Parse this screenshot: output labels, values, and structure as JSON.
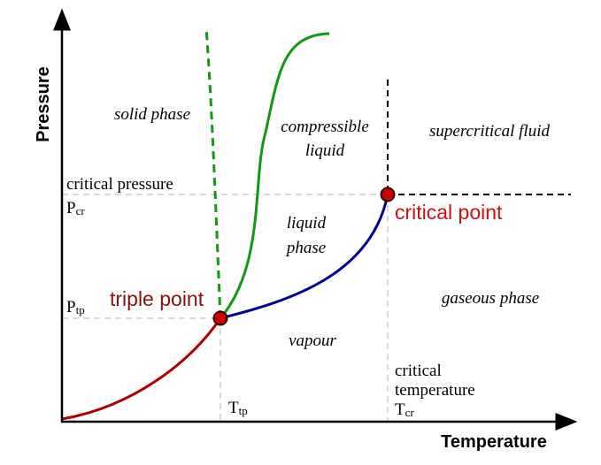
{
  "axes": {
    "x_label": "Temperature",
    "y_label": "Pressure"
  },
  "regions": {
    "solid": "solid phase",
    "compressible_line1": "compressible",
    "compressible_line2": "liquid",
    "supercritical": "supercritical fluid",
    "liquid_line1": "liquid",
    "liquid_line2": "phase",
    "gaseous": "gaseous phase",
    "vapour": "vapour"
  },
  "labels": {
    "critical_pressure": "critical pressure",
    "p_cr_main": "P",
    "p_cr_sub": "cr",
    "p_tp_main": "P",
    "p_tp_sub": "tp",
    "t_tp_main": "T",
    "t_tp_sub": "tp",
    "t_cr_main": "T",
    "t_cr_sub": "cr",
    "critical_temperature_line1": "critical",
    "critical_temperature_line2": "temperature",
    "triple_point": "triple point",
    "critical_point": "critical point"
  },
  "colors": {
    "sublimation_curve": "#aa0000",
    "vaporization_curve": "#000099",
    "melting_curve": "#119911",
    "point_fill": "#cc0000",
    "triple_label": "#8b1010",
    "critical_label": "#cc1111",
    "guide": "#cccccc"
  }
}
